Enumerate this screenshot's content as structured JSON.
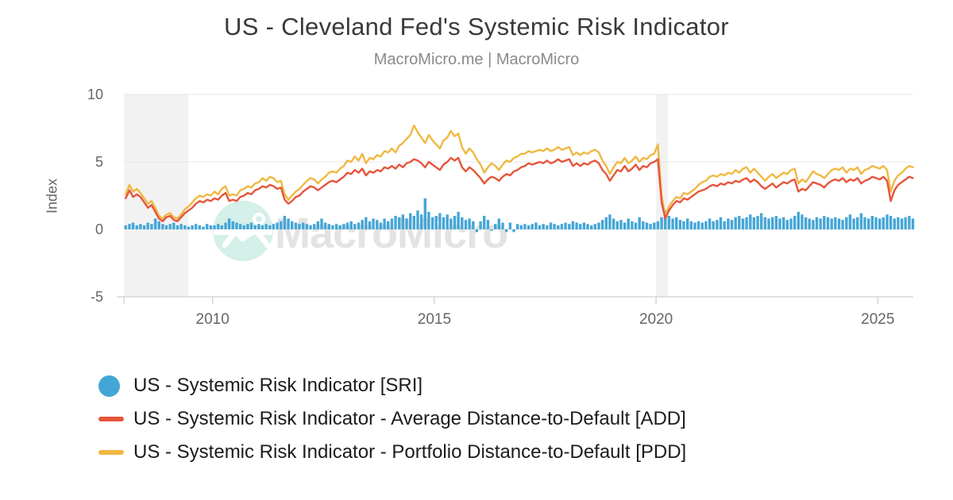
{
  "header": {
    "title": "US - Cleveland Fed's Systemic Risk Indicator",
    "subtitle": "MacroMicro.me | MacroMicro"
  },
  "watermark": {
    "text": "MacroMicro"
  },
  "colors": {
    "sri": "#44a6d6",
    "add": "#e6553c",
    "pdd": "#f0b842",
    "band": "#f2f2f2",
    "grid": "#e7e7e7",
    "axis": "#cfcfcf",
    "tick_text": "#666666",
    "watermark_circle": "#d5efe9",
    "watermark_glyph": "#ffffff",
    "watermark_text": "#e3e3e3"
  },
  "legend": {
    "items": [
      {
        "label": "US - Systemic Risk Indicator [SRI]",
        "marker": "circle"
      },
      {
        "label": "US - Systemic Risk Indicator - Average Distance-to-Default [ADD]",
        "marker": "dash"
      },
      {
        "label": "US - Systemic Risk Indicator - Portfolio Distance-to-Default [PDD]",
        "marker": "dash"
      }
    ]
  },
  "chart_data": {
    "type": "mixed",
    "title": "US - Cleveland Fed's Systemic Risk Indicator",
    "x_axis": {
      "range": [
        2008,
        2025.8
      ],
      "label_ticks": [
        2010,
        2015,
        2020,
        2025
      ]
    },
    "y_axis": {
      "label": "Index",
      "range": [
        -5,
        10
      ],
      "ticks": [
        10,
        5,
        0,
        -5
      ]
    },
    "grid": "horizontal",
    "legend_position": "bottom-left",
    "x_start": 2008.0,
    "points_per_year": 12,
    "recession_bands": [
      [
        2008.0,
        2009.45
      ],
      [
        2020.0,
        2020.27
      ]
    ],
    "series": [
      {
        "name": "US - Systemic Risk Indicator [SRI]",
        "type": "bar",
        "color": "#44a6d6",
        "values": [
          0.3,
          0.4,
          0.5,
          0.3,
          0.4,
          0.3,
          0.5,
          0.4,
          0.8,
          0.6,
          0.4,
          0.3,
          0.4,
          0.5,
          0.3,
          0.4,
          0.3,
          0.2,
          0.3,
          0.4,
          0.3,
          0.2,
          0.4,
          0.3,
          0.3,
          0.4,
          0.3,
          0.5,
          0.8,
          0.6,
          0.5,
          0.4,
          0.3,
          0.4,
          0.5,
          0.3,
          0.4,
          0.3,
          0.4,
          0.3,
          0.4,
          0.5,
          0.6,
          1.0,
          0.8,
          0.6,
          0.5,
          0.4,
          0.5,
          0.4,
          0.3,
          0.4,
          0.6,
          0.8,
          0.5,
          0.4,
          0.3,
          0.4,
          0.3,
          0.4,
          0.5,
          0.6,
          0.4,
          0.5,
          0.7,
          0.9,
          0.6,
          0.8,
          0.7,
          0.5,
          0.8,
          0.6,
          0.8,
          1.0,
          0.9,
          1.1,
          0.8,
          1.2,
          1.0,
          1.4,
          1.1,
          2.3,
          1.3,
          0.9,
          1.0,
          1.2,
          0.9,
          1.1,
          0.8,
          1.0,
          1.3,
          0.9,
          0.7,
          0.8,
          0.6,
          -0.2,
          0.6,
          1.0,
          0.7,
          -0.1,
          0.4,
          0.8,
          0.5,
          -0.2,
          0.5,
          -0.2,
          0.4,
          0.3,
          0.4,
          0.3,
          0.4,
          0.5,
          0.3,
          0.4,
          0.3,
          0.5,
          0.4,
          0.3,
          0.4,
          0.5,
          0.4,
          0.6,
          0.5,
          0.4,
          0.5,
          0.4,
          0.3,
          0.4,
          0.5,
          0.7,
          0.9,
          1.1,
          0.8,
          0.6,
          0.7,
          0.5,
          0.8,
          0.6,
          0.5,
          0.9,
          0.6,
          0.5,
          0.4,
          0.5,
          0.6,
          0.9,
          1.4,
          1.0,
          0.8,
          0.9,
          0.7,
          0.6,
          0.8,
          0.6,
          0.5,
          0.6,
          0.5,
          0.6,
          0.8,
          0.6,
          0.7,
          0.9,
          0.6,
          0.8,
          0.7,
          0.9,
          1.0,
          0.8,
          0.9,
          1.1,
          0.9,
          1.0,
          1.2,
          0.9,
          0.8,
          0.9,
          1.0,
          0.8,
          0.9,
          0.7,
          0.8,
          1.0,
          1.3,
          1.1,
          0.9,
          0.8,
          0.7,
          0.9,
          0.8,
          1.0,
          0.9,
          0.8,
          0.9,
          0.8,
          0.7,
          0.9,
          1.1,
          0.8,
          0.9,
          1.2,
          0.9,
          0.8,
          1.0,
          0.9,
          0.8,
          0.9,
          1.1,
          1.0,
          0.8,
          0.9,
          0.8,
          0.9,
          1.0,
          0.8
        ]
      },
      {
        "name": "US - Systemic Risk Indicator - Average Distance-to-Default [ADD]",
        "type": "line",
        "color": "#e6553c",
        "values": [
          2.3,
          2.9,
          2.4,
          2.6,
          2.4,
          2.0,
          1.6,
          1.8,
          1.3,
          0.8,
          0.6,
          0.9,
          1.0,
          0.7,
          0.6,
          0.9,
          1.2,
          1.4,
          1.6,
          1.9,
          2.1,
          2.0,
          2.2,
          2.1,
          2.3,
          2.2,
          2.5,
          2.7,
          2.1,
          2.2,
          2.1,
          2.4,
          2.5,
          2.7,
          2.6,
          2.9,
          3.0,
          3.2,
          3.1,
          3.3,
          3.2,
          3.0,
          3.1,
          2.2,
          1.9,
          2.1,
          2.4,
          2.5,
          2.8,
          3.0,
          3.2,
          3.1,
          2.9,
          3.1,
          3.3,
          3.5,
          3.6,
          3.5,
          3.7,
          3.9,
          4.2,
          4.1,
          4.4,
          4.2,
          4.5,
          4.0,
          4.3,
          4.2,
          4.4,
          4.3,
          4.6,
          4.5,
          4.7,
          4.5,
          4.8,
          4.6,
          4.9,
          5.0,
          5.2,
          5.1,
          4.9,
          4.6,
          5.0,
          4.8,
          4.6,
          4.4,
          4.8,
          5.0,
          5.3,
          5.1,
          5.3,
          4.6,
          4.3,
          4.6,
          4.4,
          4.1,
          3.8,
          3.4,
          3.7,
          3.9,
          3.8,
          3.6,
          3.9,
          4.1,
          4.0,
          4.3,
          4.4,
          4.6,
          4.7,
          4.9,
          4.8,
          4.9,
          5.0,
          4.9,
          5.1,
          4.9,
          5.0,
          5.2,
          5.0,
          5.1,
          5.2,
          4.7,
          4.9,
          4.7,
          4.9,
          4.8,
          5.0,
          5.1,
          4.9,
          4.4,
          4.1,
          3.6,
          4.0,
          4.4,
          4.3,
          4.7,
          4.3,
          4.5,
          4.8,
          4.4,
          4.7,
          4.6,
          4.9,
          5.0,
          5.2,
          2.0,
          0.8,
          1.4,
          1.8,
          2.1,
          2.0,
          2.3,
          2.2,
          2.4,
          2.6,
          2.8,
          2.9,
          3.0,
          3.2,
          3.3,
          3.2,
          3.4,
          3.3,
          3.5,
          3.4,
          3.6,
          3.5,
          3.7,
          3.8,
          3.5,
          3.7,
          3.5,
          3.2,
          3.0,
          3.2,
          3.4,
          3.1,
          3.3,
          3.5,
          3.4,
          3.6,
          3.7,
          2.8,
          3.0,
          2.9,
          3.2,
          3.5,
          3.4,
          3.3,
          3.1,
          3.4,
          3.6,
          3.7,
          3.6,
          3.8,
          3.5,
          3.7,
          3.6,
          3.8,
          3.4,
          3.6,
          3.7,
          3.9,
          3.8,
          3.7,
          3.9,
          3.6,
          2.1,
          2.9,
          3.3,
          3.5,
          3.7,
          3.9,
          3.8
        ]
      },
      {
        "name": "US - Systemic Risk Indicator - Portfolio Distance-to-Default [PDD]",
        "type": "line",
        "color": "#f0b842",
        "values": [
          2.6,
          3.3,
          2.8,
          3.0,
          2.7,
          2.3,
          1.9,
          2.1,
          1.6,
          1.0,
          0.8,
          1.1,
          1.2,
          0.9,
          0.8,
          1.1,
          1.5,
          1.7,
          2.0,
          2.3,
          2.5,
          2.4,
          2.6,
          2.5,
          2.8,
          2.6,
          3.0,
          3.2,
          2.5,
          2.6,
          2.5,
          2.9,
          3.0,
          3.2,
          3.1,
          3.4,
          3.5,
          3.8,
          3.6,
          3.9,
          3.8,
          3.5,
          3.6,
          2.6,
          2.2,
          2.5,
          2.8,
          3.0,
          3.3,
          3.6,
          3.8,
          3.7,
          3.4,
          3.7,
          3.9,
          4.2,
          4.3,
          4.2,
          4.5,
          4.7,
          5.1,
          5.0,
          5.4,
          5.1,
          5.6,
          4.9,
          5.3,
          5.2,
          5.5,
          5.4,
          5.8,
          5.7,
          6.0,
          5.7,
          6.2,
          6.4,
          6.7,
          7.0,
          7.7,
          7.2,
          6.8,
          6.4,
          7.0,
          6.6,
          6.3,
          6.0,
          6.6,
          6.8,
          7.3,
          6.9,
          7.1,
          6.1,
          5.6,
          6.0,
          5.7,
          5.2,
          4.8,
          4.2,
          4.6,
          4.9,
          4.7,
          4.4,
          4.8,
          5.1,
          5.0,
          5.3,
          5.4,
          5.6,
          5.6,
          5.8,
          5.7,
          5.8,
          5.9,
          5.8,
          6.0,
          5.8,
          5.9,
          6.1,
          5.9,
          6.0,
          6.1,
          5.5,
          5.7,
          5.5,
          5.7,
          5.6,
          5.8,
          5.9,
          5.7,
          5.1,
          4.7,
          4.1,
          4.6,
          5.0,
          4.9,
          5.3,
          4.9,
          5.1,
          5.4,
          5.0,
          5.3,
          5.2,
          5.5,
          5.6,
          6.3,
          2.5,
          1.0,
          1.7,
          2.1,
          2.4,
          2.3,
          2.7,
          2.6,
          2.8,
          3.0,
          3.3,
          3.5,
          3.6,
          3.9,
          4.0,
          3.9,
          4.1,
          4.0,
          4.2,
          4.1,
          4.4,
          4.2,
          4.5,
          4.6,
          4.2,
          4.5,
          4.2,
          3.9,
          3.6,
          3.9,
          4.1,
          3.8,
          4.0,
          4.2,
          4.1,
          4.4,
          4.5,
          3.4,
          3.7,
          3.5,
          3.9,
          4.3,
          4.1,
          4.0,
          3.8,
          4.1,
          4.4,
          4.5,
          4.4,
          4.6,
          4.2,
          4.5,
          4.4,
          4.6,
          4.1,
          4.4,
          4.5,
          4.7,
          4.6,
          4.5,
          4.7,
          4.4,
          2.8,
          3.6,
          4.0,
          4.2,
          4.5,
          4.7,
          4.6
        ]
      }
    ]
  }
}
